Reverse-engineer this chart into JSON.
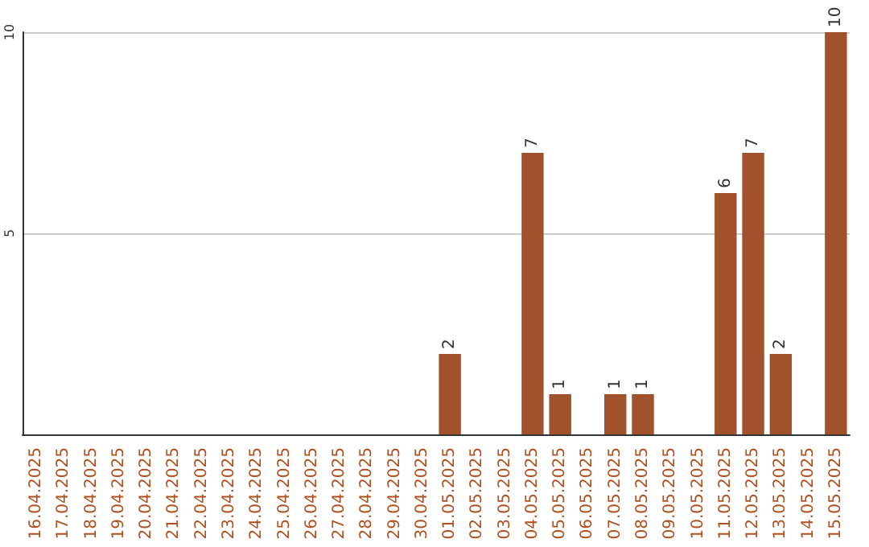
{
  "chart_data": {
    "type": "bar",
    "categories": [
      "16.04.2025",
      "17.04.2025",
      "18.04.2025",
      "19.04.2025",
      "20.04.2025",
      "21.04.2025",
      "22.04.2025",
      "23.04.2025",
      "24.04.2025",
      "25.04.2025",
      "26.04.2025",
      "27.04.2025",
      "28.04.2025",
      "29.04.2025",
      "30.04.2025",
      "01.05.2025",
      "02.05.2025",
      "03.05.2025",
      "04.05.2025",
      "05.05.2025",
      "06.05.2025",
      "07.05.2025",
      "08.05.2025",
      "09.05.2025",
      "10.05.2025",
      "11.05.2025",
      "12.05.2025",
      "13.05.2025",
      "14.05.2025",
      "15.05.2025"
    ],
    "values": [
      0,
      0,
      0,
      0,
      0,
      0,
      0,
      0,
      0,
      0,
      0,
      0,
      0,
      0,
      0,
      2,
      0,
      0,
      7,
      1,
      0,
      1,
      1,
      0,
      0,
      6,
      7,
      2,
      0,
      10
    ],
    "value_labels": [
      null,
      null,
      null,
      null,
      null,
      null,
      null,
      null,
      null,
      null,
      null,
      null,
      null,
      null,
      null,
      "2",
      null,
      null,
      "7",
      "1",
      null,
      "1",
      "1",
      null,
      null,
      "6",
      "7",
      "2",
      null,
      "10"
    ],
    "color": "#a0522d",
    "ylim": [
      0,
      10
    ],
    "yticks": [
      5,
      10
    ],
    "grid": "y"
  }
}
